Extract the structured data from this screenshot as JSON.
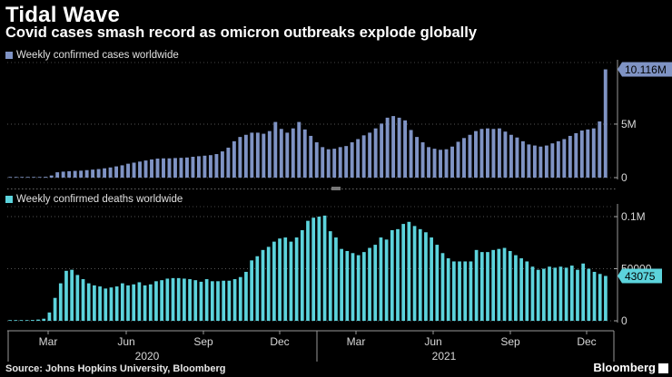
{
  "header": {
    "title": "Tidal Wave",
    "subtitle": "Covid cases smash record as omicron outbreaks explode globally"
  },
  "footer": {
    "source": "Source: Johns Hopkins University, Bloomberg",
    "brand": "Bloomberg"
  },
  "colors": {
    "cases": "#7f93c4",
    "deaths": "#5cd3dc",
    "grid": "#555555",
    "text": "#d8d8d8"
  },
  "chart_data": [
    {
      "type": "bar",
      "name": "cases",
      "legend": "Weekly confirmed cases worldwide",
      "ylabel": "",
      "xlabel": "",
      "ylim": [
        0,
        10.5
      ],
      "unit": "million",
      "y_ticks": [
        {
          "value": 0,
          "label": "0"
        },
        {
          "value": 5,
          "label": "5M"
        }
      ],
      "last_value_label": "10.116M",
      "values": [
        0.002,
        0.01,
        0.02,
        0.03,
        0.05,
        0.06,
        0.08,
        0.2,
        0.5,
        0.56,
        0.6,
        0.63,
        0.65,
        0.7,
        0.75,
        0.8,
        0.87,
        0.95,
        1.05,
        1.15,
        1.3,
        1.4,
        1.5,
        1.6,
        1.7,
        1.78,
        1.8,
        1.8,
        1.83,
        1.85,
        1.88,
        1.95,
        2.0,
        2.05,
        2.1,
        2.2,
        2.45,
        2.8,
        3.4,
        3.8,
        4.0,
        4.2,
        4.2,
        4.1,
        4.35,
        5.2,
        4.55,
        4.2,
        4.6,
        5.2,
        4.5,
        3.9,
        3.3,
        2.85,
        2.65,
        2.7,
        2.85,
        2.95,
        3.3,
        3.6,
        3.95,
        4.2,
        4.6,
        5.05,
        5.6,
        5.75,
        5.6,
        5.35,
        4.45,
        3.8,
        3.3,
        2.85,
        2.7,
        2.6,
        2.65,
        2.9,
        3.35,
        3.7,
        4.0,
        4.35,
        4.55,
        4.6,
        4.55,
        4.6,
        4.3,
        4.0,
        3.75,
        3.4,
        3.1,
        3.0,
        2.9,
        3.0,
        3.2,
        3.4,
        3.6,
        3.9,
        4.15,
        4.4,
        4.5,
        4.6,
        5.25,
        10.116
      ]
    },
    {
      "type": "bar",
      "name": "deaths",
      "legend": "Weekly confirmed deaths worldwide",
      "ylabel": "",
      "xlabel": "",
      "ylim": [
        0,
        107000
      ],
      "y_ticks": [
        {
          "value": 0,
          "label": "0"
        },
        {
          "value": 50000,
          "label": "50000"
        },
        {
          "value": 100000,
          "label": "0.1M"
        }
      ],
      "last_value_label": "43075",
      "values": [
        100,
        200,
        300,
        500,
        800,
        1200,
        2000,
        8000,
        22000,
        36000,
        48000,
        49000,
        44000,
        40000,
        36000,
        34000,
        33000,
        31000,
        32000,
        33000,
        36000,
        34000,
        35000,
        37000,
        34000,
        35000,
        38000,
        39000,
        40500,
        41000,
        41000,
        40500,
        40000,
        39000,
        37500,
        40000,
        38000,
        38000,
        38500,
        38500,
        40000,
        42000,
        47000,
        58000,
        62000,
        68000,
        71000,
        76000,
        79000,
        80000,
        76000,
        80000,
        87000,
        96000,
        99000,
        100000,
        101000,
        86000,
        80000,
        69000,
        67000,
        65000,
        63000,
        66000,
        70000,
        73000,
        80000,
        78000,
        87000,
        88000,
        93000,
        95000,
        91000,
        88000,
        85000,
        80000,
        73000,
        65000,
        60000,
        57000,
        57000,
        57000,
        57000,
        68000,
        66000,
        66000,
        68000,
        69000,
        70000,
        67000,
        63000,
        60000,
        57000,
        52000,
        49000,
        50000,
        52000,
        51000,
        52000,
        51000,
        53000,
        49000,
        55000,
        50000,
        47000,
        45000,
        43075
      ]
    }
  ],
  "x_axis": {
    "month_ticks": [
      "Mar",
      "Jun",
      "Sep",
      "Dec",
      "Mar",
      "Jun",
      "Sep",
      "Dec"
    ],
    "years": [
      "2020",
      "2021"
    ]
  }
}
